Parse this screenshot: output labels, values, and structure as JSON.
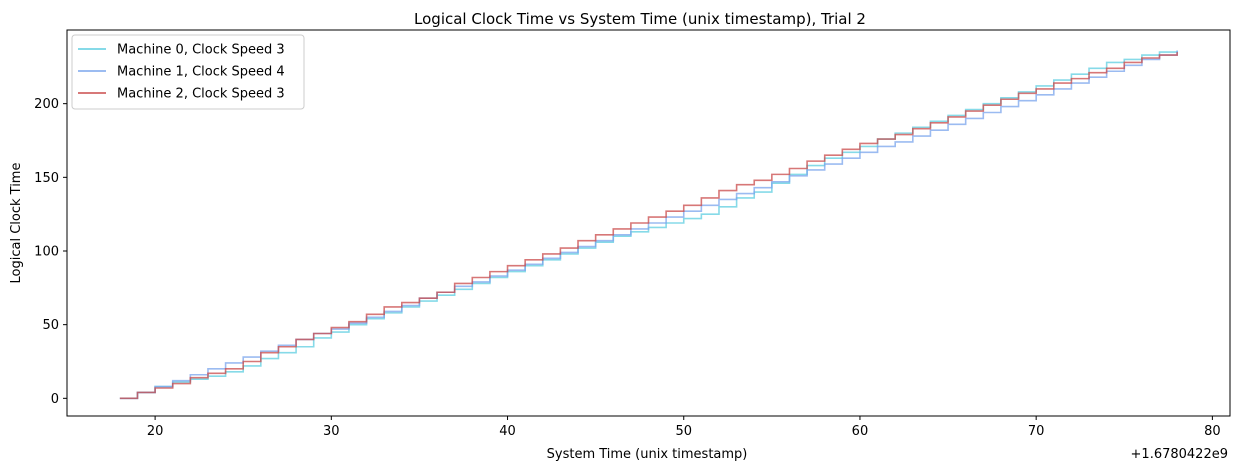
{
  "chart_data": {
    "type": "line",
    "title": "Logical Clock Time vs System Time (unix timestamp), Trial 2",
    "xlabel": "System Time (unix timestamp)",
    "ylabel": "Logical Clock Time",
    "x_offset_label": "+1.6780422e9",
    "xlim": [
      15,
      81
    ],
    "ylim": [
      -12,
      250
    ],
    "xticks": [
      20,
      30,
      40,
      50,
      60,
      70,
      80
    ],
    "yticks": [
      0,
      50,
      100,
      150,
      200
    ],
    "x_range": [
      18,
      78
    ],
    "legend_position": "top-left",
    "grid": false,
    "series": [
      {
        "name": "Machine 0, Clock Speed 3",
        "color": "#5dcde0",
        "values_note": "logical clock at each whole second from t=18 to t=78",
        "values": [
          0,
          4,
          8,
          11,
          13,
          15,
          18,
          22,
          27,
          31,
          35,
          41,
          45,
          50,
          54,
          58,
          62,
          66,
          70,
          74,
          78,
          82,
          86,
          90,
          94,
          98,
          102,
          106,
          110,
          113,
          116,
          119,
          122,
          125,
          130,
          136,
          140,
          146,
          152,
          158,
          163,
          167,
          171,
          176,
          180,
          184,
          188,
          192,
          196,
          200,
          204,
          208,
          212,
          216,
          220,
          224,
          228,
          230,
          233,
          235,
          236
        ]
      },
      {
        "name": "Machine 1, Clock Speed 4",
        "color": "#7aa4ec",
        "values": [
          0,
          4,
          8,
          12,
          16,
          20,
          24,
          28,
          32,
          36,
          40,
          44,
          47,
          51,
          55,
          59,
          63,
          68,
          72,
          76,
          79,
          83,
          87,
          91,
          95,
          99,
          103,
          107,
          111,
          115,
          119,
          123,
          127,
          131,
          135,
          139,
          143,
          147,
          151,
          155,
          159,
          163,
          167,
          171,
          174,
          178,
          182,
          186,
          190,
          194,
          198,
          202,
          206,
          210,
          214,
          218,
          222,
          226,
          230,
          233,
          236
        ]
      },
      {
        "name": "Machine 2, Clock Speed 3",
        "color": "#c94a4a",
        "values": [
          0,
          4,
          7,
          10,
          14,
          17,
          20,
          25,
          31,
          35,
          40,
          44,
          48,
          52,
          57,
          62,
          65,
          68,
          72,
          78,
          82,
          86,
          90,
          94,
          98,
          102,
          107,
          111,
          115,
          119,
          123,
          127,
          131,
          136,
          141,
          145,
          148,
          152,
          156,
          161,
          165,
          169,
          173,
          176,
          179,
          183,
          187,
          191,
          195,
          199,
          203,
          207,
          210,
          214,
          217,
          221,
          224,
          228,
          231,
          233,
          235
        ]
      }
    ]
  }
}
